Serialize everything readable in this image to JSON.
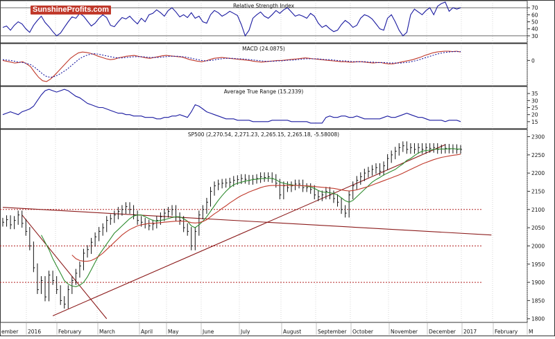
{
  "logo": {
    "brand": "SunshineProfits.com"
  },
  "chart_data": [
    {
      "type": "line",
      "title": "Relative Strength Index",
      "ylim": [
        20,
        80
      ],
      "yticks": [
        30,
        40,
        50,
        60,
        70
      ],
      "reference_lines": [
        30,
        70
      ],
      "series": [
        {
          "color": "#1a1aa0",
          "values": [
            42,
            44,
            38,
            45,
            50,
            47,
            40,
            35,
            45,
            52,
            58,
            49,
            43,
            36,
            30,
            34,
            42,
            50,
            57,
            55,
            62,
            58,
            51,
            44,
            48,
            55,
            60,
            56,
            45,
            43,
            50,
            56,
            54,
            58,
            52,
            47,
            55,
            50,
            60,
            62,
            67,
            63,
            58,
            66,
            70,
            64,
            57,
            60,
            56,
            63,
            55,
            58,
            50,
            48,
            60,
            66,
            63,
            58,
            61,
            65,
            62,
            59,
            46,
            30,
            38,
            55,
            60,
            64,
            58,
            55,
            60,
            66,
            62,
            67,
            70,
            64,
            58,
            60,
            58,
            55,
            62,
            58,
            48,
            42,
            45,
            40,
            36,
            38,
            46,
            52,
            48,
            42,
            45,
            55,
            60,
            58,
            54,
            47,
            40,
            38,
            55,
            60,
            50,
            38,
            30,
            35,
            60,
            68,
            64,
            60,
            66,
            70,
            60,
            72,
            76,
            78,
            65,
            70,
            68,
            70
          ]
        }
      ]
    },
    {
      "type": "line",
      "title": "MACD (24.0875)",
      "ylim": [
        -60,
        40
      ],
      "yticks": [
        0
      ],
      "series": [
        {
          "color": "#c0392b",
          "values": [
            0,
            -2,
            -4,
            -6,
            -5,
            -3,
            -8,
            -15,
            -28,
            -40,
            -48,
            -50,
            -44,
            -35,
            -25,
            -15,
            -5,
            5,
            12,
            18,
            20,
            19,
            17,
            14,
            10,
            7,
            4,
            2,
            3,
            6,
            8,
            10,
            11,
            12,
            10,
            8,
            6,
            5,
            7,
            9,
            11,
            12,
            11,
            10,
            9,
            8,
            5,
            2,
            0,
            -2,
            -3,
            -1,
            2,
            5,
            6,
            7,
            6,
            5,
            4,
            3,
            2,
            1,
            0,
            -2,
            -3,
            -4,
            -3,
            -2,
            -1,
            0,
            0,
            1,
            2,
            3,
            4,
            5,
            6,
            5,
            4,
            3,
            2,
            1,
            0,
            -1,
            -2,
            -3,
            -3,
            -4,
            -4,
            -3,
            -3,
            -4,
            -5,
            -6,
            -5,
            -5,
            -7,
            -8,
            -8,
            -6,
            -4,
            -2,
            0,
            2,
            5,
            8,
            12,
            15,
            18,
            20,
            21,
            22,
            22,
            21,
            22,
            20
          ]
        },
        {
          "color": "#1a1aa0",
          "dashed": true,
          "values": [
            2,
            1,
            0,
            -2,
            -4,
            -5,
            -7,
            -10,
            -16,
            -24,
            -32,
            -38,
            -40,
            -38,
            -34,
            -28,
            -22,
            -14,
            -6,
            2,
            8,
            12,
            15,
            16,
            15,
            13,
            11,
            9,
            7,
            6,
            6,
            7,
            8,
            9,
            9,
            9,
            8,
            7,
            7,
            7,
            8,
            9,
            10,
            10,
            10,
            9,
            8,
            6,
            4,
            2,
            0,
            -1,
            0,
            1,
            3,
            4,
            5,
            5,
            5,
            4,
            4,
            3,
            2,
            1,
            0,
            -1,
            -2,
            -2,
            -2,
            -1,
            -1,
            0,
            1,
            1,
            2,
            3,
            4,
            4,
            4,
            4,
            3,
            2,
            2,
            1,
            0,
            -1,
            -1,
            -2,
            -3,
            -3,
            -3,
            -3,
            -4,
            -4,
            -5,
            -5,
            -5,
            -6,
            -6,
            -6,
            -6,
            -5,
            -4,
            -2,
            0,
            3,
            6,
            9,
            12,
            15,
            17,
            19,
            20,
            21,
            21,
            21
          ]
        }
      ]
    },
    {
      "type": "line",
      "title": "Average True Range (15.2339)",
      "ylim": [
        10,
        40
      ],
      "yticks": [
        15,
        20,
        25,
        30,
        35
      ],
      "series": [
        {
          "color": "#1a1aa0",
          "values": [
            20,
            21,
            22,
            21,
            20,
            22,
            23,
            24,
            26,
            30,
            34,
            37,
            38,
            37,
            36,
            37,
            38,
            37,
            35,
            33,
            32,
            30,
            28,
            27,
            26,
            25,
            25,
            24,
            23,
            22,
            21,
            21,
            20,
            20,
            19,
            19,
            19,
            18,
            18,
            18,
            17,
            17,
            18,
            18,
            19,
            19,
            20,
            19,
            18,
            22,
            27,
            26,
            24,
            22,
            21,
            20,
            19,
            18,
            17,
            17,
            17,
            16,
            16,
            16,
            16,
            15,
            15,
            15,
            15,
            15,
            16,
            16,
            16,
            16,
            16,
            15,
            15,
            15,
            15,
            15,
            14,
            14,
            14,
            14,
            18,
            19,
            18,
            18,
            19,
            19,
            18,
            18,
            19,
            18,
            17,
            17,
            17,
            17,
            17,
            18,
            19,
            18,
            18,
            19,
            20,
            21,
            20,
            19,
            18,
            18,
            17,
            16,
            16,
            16,
            16,
            15,
            16,
            16,
            16,
            15
          ]
        }
      ]
    },
    {
      "type": "line",
      "title": "SP500 (2,270.54, 2,271.23, 2,265.15, 2,265.18, -5.58008)",
      "ylim": [
        1790,
        2320
      ],
      "yticks": [
        1800,
        1850,
        1900,
        1950,
        2000,
        2050,
        2100,
        2150,
        2200,
        2250,
        2300
      ],
      "x_tick_labels": [
        "ember",
        "2016",
        "February",
        "March",
        "April",
        "May",
        "June",
        "July",
        "August",
        "September",
        "October",
        "November",
        "December",
        "2017",
        "February",
        "M"
      ],
      "series": [
        {
          "name": "price",
          "color": "#111111",
          "values": [
            2065,
            2072,
            2058,
            2070,
            2085,
            2062,
            2040,
            2000,
            1940,
            1880,
            1905,
            1860,
            1920,
            1905,
            1880,
            1850,
            1840,
            1880,
            1905,
            1925,
            1945,
            1980,
            1990,
            2010,
            2025,
            2040,
            2050,
            2070,
            2075,
            2085,
            2095,
            2100,
            2108,
            2100,
            2085,
            2070,
            2065,
            2060,
            2055,
            2060,
            2070,
            2080,
            2090,
            2095,
            2100,
            2080,
            2070,
            2050,
            2040,
            2000,
            2040,
            2085,
            2100,
            2120,
            2150,
            2165,
            2170,
            2172,
            2173,
            2175,
            2180,
            2182,
            2185,
            2183,
            2180,
            2183,
            2185,
            2190,
            2188,
            2190,
            2185,
            2172,
            2140,
            2165,
            2160,
            2165,
            2170,
            2170,
            2160,
            2160,
            2155,
            2140,
            2135,
            2140,
            2150,
            2140,
            2130,
            2120,
            2100,
            2090,
            2140,
            2165,
            2180,
            2190,
            2200,
            2205,
            2210,
            2215,
            2205,
            2220,
            2240,
            2250,
            2260,
            2270,
            2275,
            2265,
            2270,
            2265,
            2270,
            2265,
            2270,
            2268,
            2270,
            2265,
            2266,
            2268,
            2266,
            2267,
            2265,
            2265
          ]
        },
        {
          "name": "SMA short",
          "color": "#2e8b2e",
          "values": [
            null,
            null,
            null,
            null,
            null,
            null,
            null,
            null,
            null,
            null,
            2030,
            2010,
            1990,
            1965,
            1945,
            1925,
            1905,
            1895,
            1890,
            1888,
            1892,
            1900,
            1915,
            1935,
            1955,
            1975,
            1990,
            2005,
            2020,
            2035,
            2045,
            2055,
            2065,
            2075,
            2082,
            2085,
            2085,
            2080,
            2075,
            2070,
            2068,
            2070,
            2072,
            2075,
            2078,
            2080,
            2080,
            2075,
            2068,
            2055,
            2050,
            2058,
            2068,
            2080,
            2095,
            2110,
            2125,
            2138,
            2150,
            2160,
            2168,
            2172,
            2175,
            2178,
            2180,
            2182,
            2183,
            2185,
            2185,
            2186,
            2185,
            2182,
            2175,
            2172,
            2170,
            2168,
            2166,
            2166,
            2165,
            2164,
            2162,
            2158,
            2152,
            2148,
            2147,
            2146,
            2144,
            2140,
            2132,
            2124,
            2120,
            2125,
            2135,
            2145,
            2155,
            2165,
            2175,
            2182,
            2188,
            2195,
            2200,
            2205,
            2210,
            2218,
            2225,
            2235,
            2240,
            2248,
            2255,
            2260,
            2262,
            2263,
            2265,
            2266,
            2266,
            2266,
            2267,
            2267,
            2266,
            2266
          ]
        },
        {
          "name": "SMA long",
          "color": "#c0392b",
          "values": [
            null,
            null,
            null,
            null,
            null,
            null,
            null,
            null,
            null,
            null,
            null,
            null,
            null,
            null,
            null,
            null,
            null,
            null,
            1975,
            1965,
            1960,
            1958,
            1958,
            1960,
            1965,
            1972,
            1980,
            1990,
            2000,
            2010,
            2020,
            2030,
            2038,
            2045,
            2050,
            2055,
            2058,
            2060,
            2062,
            2062,
            2063,
            2064,
            2065,
            2066,
            2067,
            2068,
            2068,
            2068,
            2067,
            2064,
            2063,
            2064,
            2067,
            2072,
            2080,
            2088,
            2095,
            2103,
            2110,
            2118,
            2125,
            2132,
            2138,
            2143,
            2148,
            2152,
            2156,
            2160,
            2163,
            2165,
            2166,
            2166,
            2166,
            2166,
            2166,
            2166,
            2166,
            2166,
            2165,
            2165,
            2164,
            2163,
            2162,
            2161,
            2160,
            2159,
            2158,
            2156,
            2154,
            2152,
            2151,
            2152,
            2154,
            2157,
            2160,
            2163,
            2167,
            2171,
            2175,
            2179,
            2183,
            2187,
            2191,
            2195,
            2200,
            2205,
            2210,
            2215,
            2220,
            2225,
            2229,
            2233,
            2237,
            2240,
            2243,
            2245,
            2247,
            2249,
            2250,
            2252
          ]
        }
      ],
      "reference_lines": [
        2100,
        2000,
        1900
      ],
      "trend_lines": [
        {
          "from": [
            0,
            2106
          ],
          "to": [
            127,
            2030
          ],
          "color": "#8b1a1a"
        },
        {
          "from": [
            13,
            1808
          ],
          "to": [
            115,
            2278
          ],
          "color": "#8b1a1a"
        },
        {
          "from": [
            5,
            2085
          ],
          "to": [
            27,
            1800
          ],
          "color": "#8b1a1a"
        }
      ]
    }
  ]
}
